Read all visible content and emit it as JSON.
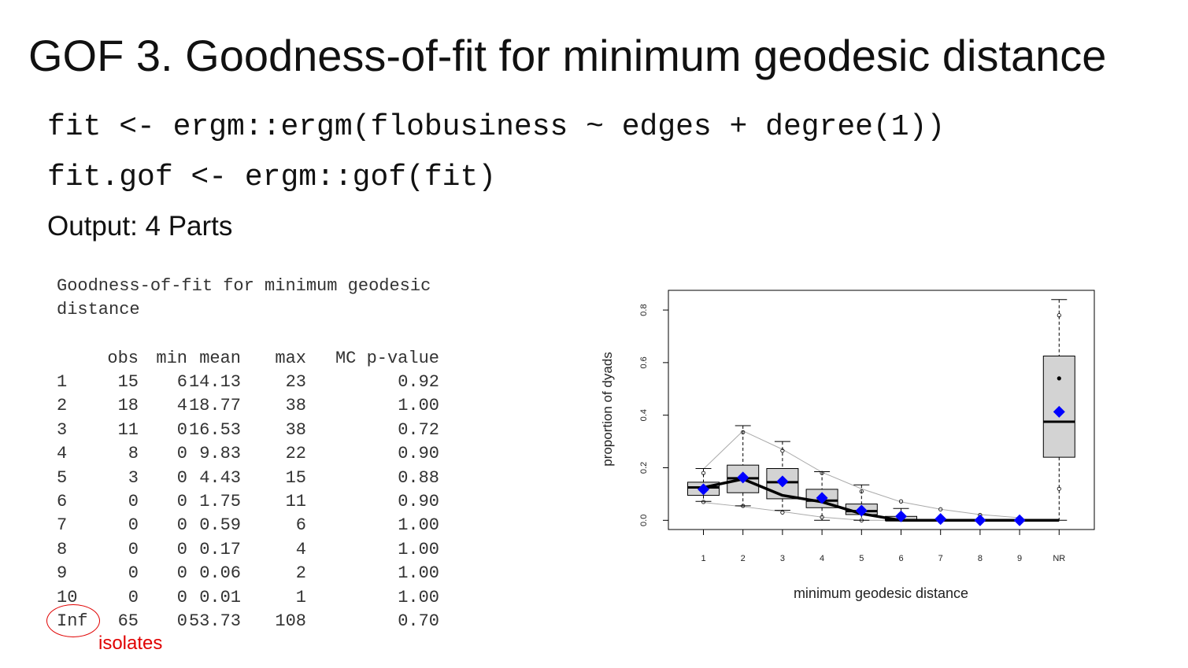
{
  "slide": {
    "title": "GOF 3. Goodness-of-fit for minimum geodesic distance",
    "code_line1": "fit <- ergm::ergm(flobusiness ~ edges + degree(1))",
    "code_line2": "fit.gof <- ergm::gof(fit)",
    "output_label": "Output: 4 Parts"
  },
  "table": {
    "heading_line1": "Goodness-of-fit for minimum geodesic",
    "heading_line2": "distance",
    "columns": [
      "obs",
      "min",
      "mean",
      "max",
      "MC p-value"
    ],
    "rows": [
      {
        "label": "1",
        "obs": "15",
        "min": "6",
        "mean": "14.13",
        "max": "23",
        "p": "0.92"
      },
      {
        "label": "2",
        "obs": "18",
        "min": "4",
        "mean": "18.77",
        "max": "38",
        "p": "1.00"
      },
      {
        "label": "3",
        "obs": "11",
        "min": "0",
        "mean": "16.53",
        "max": "38",
        "p": "0.72"
      },
      {
        "label": "4",
        "obs": "8",
        "min": "0",
        "mean": "9.83",
        "max": "22",
        "p": "0.90"
      },
      {
        "label": "5",
        "obs": "3",
        "min": "0",
        "mean": "4.43",
        "max": "15",
        "p": "0.88"
      },
      {
        "label": "6",
        "obs": "0",
        "min": "0",
        "mean": "1.75",
        "max": "11",
        "p": "0.90"
      },
      {
        "label": "7",
        "obs": "0",
        "min": "0",
        "mean": "0.59",
        "max": "6",
        "p": "1.00"
      },
      {
        "label": "8",
        "obs": "0",
        "min": "0",
        "mean": "0.17",
        "max": "4",
        "p": "1.00"
      },
      {
        "label": "9",
        "obs": "0",
        "min": "0",
        "mean": "0.06",
        "max": "2",
        "p": "1.00"
      },
      {
        "label": "10",
        "obs": "0",
        "min": "0",
        "mean": "0.01",
        "max": "1",
        "p": "1.00"
      },
      {
        "label": "Inf",
        "obs": "65",
        "min": "0",
        "mean": "53.73",
        "max": "108",
        "p": "0.70"
      }
    ],
    "annotation": "isolates"
  },
  "chart_data": {
    "type": "box",
    "xlabel": "minimum geodesic distance",
    "ylabel": "proportion of dyads",
    "categories": [
      "1",
      "2",
      "3",
      "4",
      "5",
      "6",
      "7",
      "8",
      "9",
      "NR"
    ],
    "yticks": [
      "0.0",
      "0.2",
      "0.4",
      "0.6",
      "0.8"
    ],
    "ylim": [
      -0.035,
      0.875
    ],
    "boxes": [
      {
        "q1": 0.095,
        "median": 0.125,
        "q3": 0.145,
        "wlo": 0.072,
        "whi": 0.197
      },
      {
        "q1": 0.105,
        "median": 0.16,
        "q3": 0.21,
        "wlo": 0.055,
        "whi": 0.36
      },
      {
        "q1": 0.082,
        "median": 0.145,
        "q3": 0.197,
        "wlo": 0.038,
        "whi": 0.3
      },
      {
        "q1": 0.048,
        "median": 0.075,
        "q3": 0.118,
        "wlo": 0.0,
        "whi": 0.185
      },
      {
        "q1": 0.022,
        "median": 0.035,
        "q3": 0.062,
        "wlo": 0.0,
        "whi": 0.135
      },
      {
        "q1": 0.0,
        "median": 0.0,
        "q3": 0.015,
        "wlo": 0.0,
        "whi": 0.045
      },
      {
        "q1": 0.0,
        "median": 0.0,
        "q3": 0.0,
        "wlo": 0.0,
        "whi": 0.0
      },
      {
        "q1": 0.0,
        "median": 0.0,
        "q3": 0.0,
        "wlo": 0.0,
        "whi": 0.0
      },
      {
        "q1": 0.0,
        "median": 0.0,
        "q3": 0.0,
        "wlo": 0.0,
        "whi": 0.0
      },
      {
        "q1": 0.24,
        "median": 0.375,
        "q3": 0.625,
        "wlo": 0.0,
        "whi": 0.84
      }
    ],
    "observed": [
      0.125,
      0.157,
      0.095,
      0.07,
      0.025,
      0.0,
      0.0,
      0.0,
      0.0,
      0.0
    ],
    "simulated_mean": [
      0.118,
      0.163,
      0.148,
      0.085,
      0.037,
      0.015,
      0.005,
      0.0,
      0.0,
      0.413
    ],
    "upper_band": [
      0.195,
      0.34,
      0.27,
      0.183,
      0.12,
      0.07,
      0.042,
      0.022,
      0.01
    ],
    "lower_band": [
      0.068,
      0.052,
      0.033,
      0.012,
      0.0,
      0.0,
      0.0,
      0.0,
      0.0
    ],
    "outliers": [
      [
        1,
        0.18
      ],
      [
        1,
        0.07
      ],
      [
        2,
        0.335
      ],
      [
        2,
        0.055
      ],
      [
        3,
        0.265
      ],
      [
        3,
        0.03
      ],
      [
        4,
        0.18
      ],
      [
        4,
        0.012
      ],
      [
        5,
        0.11
      ],
      [
        5,
        0.0
      ],
      [
        6,
        0.072
      ],
      [
        7,
        0.042
      ],
      [
        8,
        0.02
      ],
      [
        9,
        0.005
      ],
      [
        10,
        0.78
      ],
      [
        10,
        0.12
      ]
    ],
    "nr_mean_point": 0.54,
    "colors": {
      "box_fill": "#d3d3d3",
      "mean_marker": "#0000ff",
      "band": "#aaaaaa",
      "observed_line": "#000000"
    }
  }
}
